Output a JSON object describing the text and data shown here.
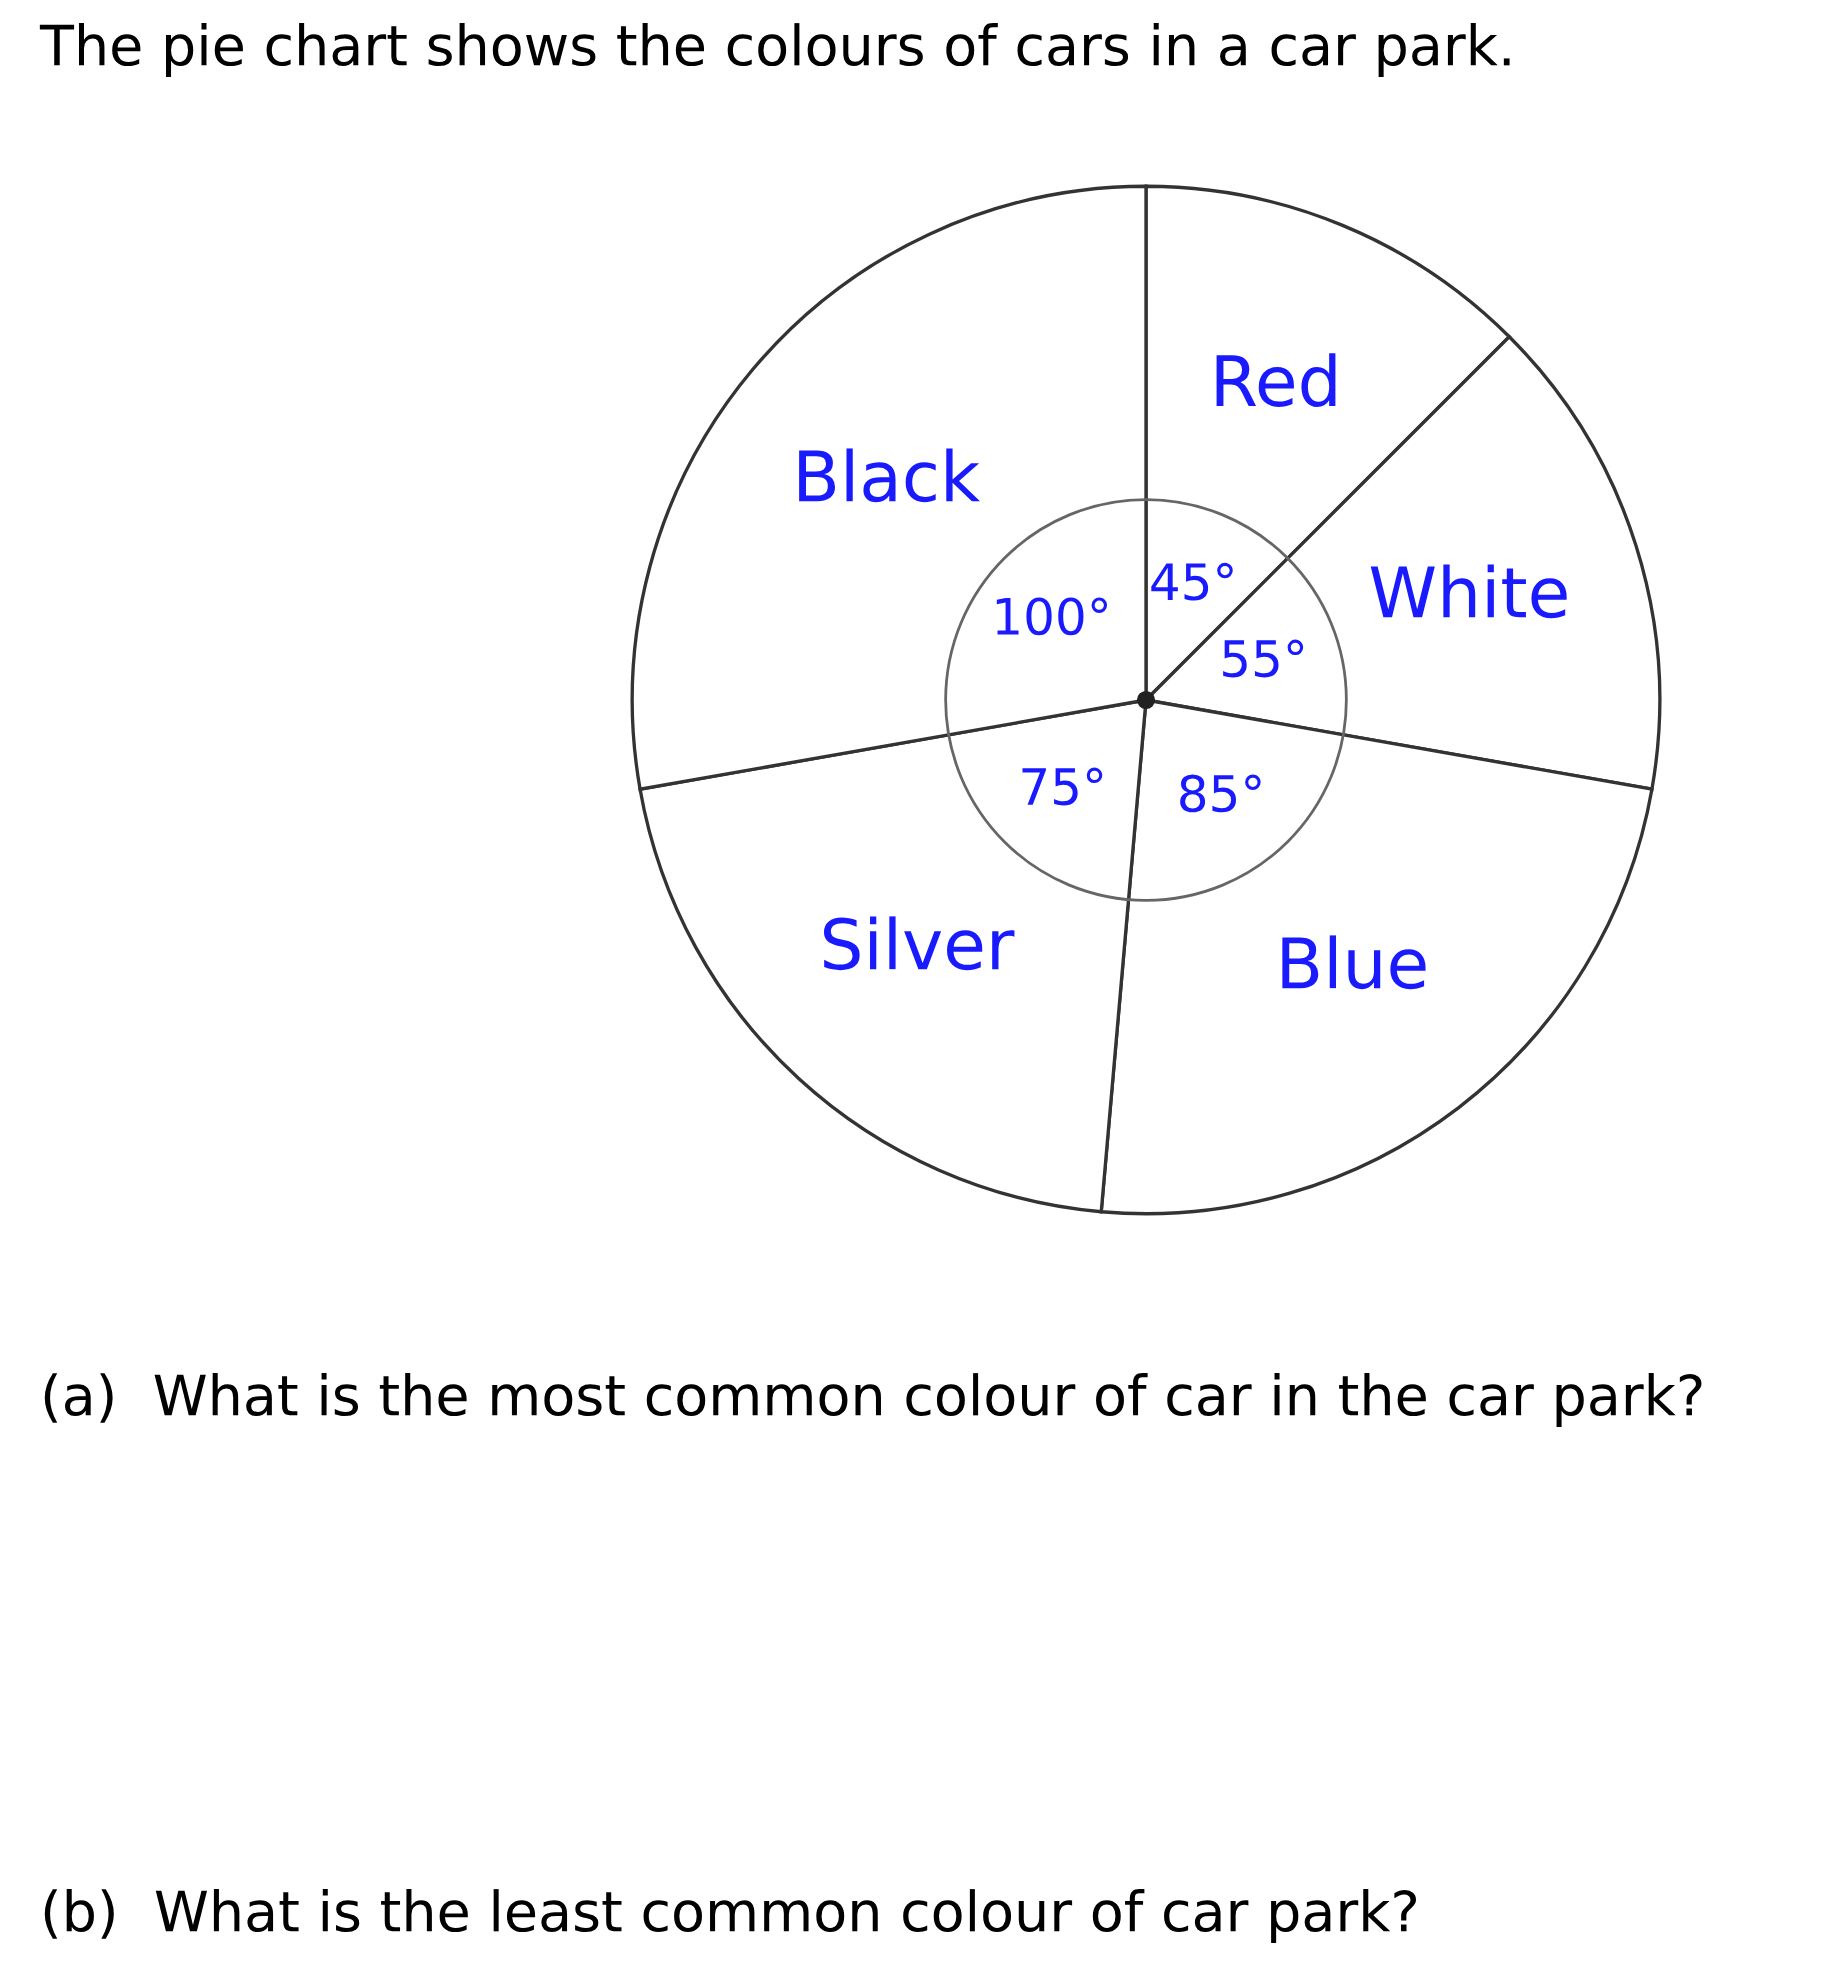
{
  "chart_data": {
    "type": "pie",
    "title": "The pie chart shows the colours of cars in a car park.",
    "categories": [
      "Red",
      "White",
      "Blue",
      "Silver",
      "Black"
    ],
    "values": [
      45,
      55,
      85,
      75,
      100
    ],
    "colors": [
      "#ffffff",
      "#ffffff",
      "#ffffff",
      "#ffffff",
      "#ffffff"
    ],
    "value_labels": [
      "45°",
      "55°",
      "85°",
      "75°",
      "100°"
    ],
    "annotations": [
      "(a)  What is the most common colour of car in the car park?",
      "(b)  What is the least common colour of car park?"
    ]
  }
}
